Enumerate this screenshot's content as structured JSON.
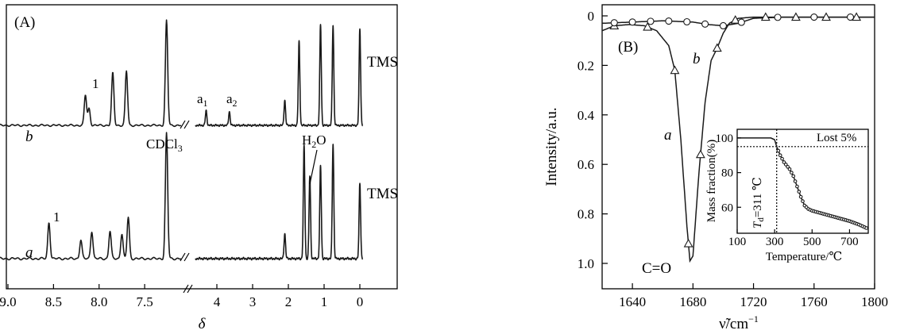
{
  "chart_data": [
    {
      "panel": "(A)",
      "type": "line",
      "xlabel": "δ",
      "x_ticks": [
        "9.0",
        "8.5",
        "8.0",
        "7.5",
        "4",
        "3",
        "2",
        "1",
        "0"
      ],
      "axis_break": "//",
      "series": [
        {
          "name": "b",
          "end_label": "TMS",
          "peaks": [
            {
              "delta": 8.15,
              "rel_height": 0.29,
              "label": "1"
            },
            {
              "delta": 8.11,
              "rel_height": 0.16
            },
            {
              "delta": 7.85,
              "rel_height": 0.5
            },
            {
              "delta": 7.7,
              "rel_height": 0.52
            },
            {
              "delta": 7.26,
              "rel_height": 1.0
            },
            {
              "delta": 4.3,
              "rel_height": 0.14,
              "label": "a1"
            },
            {
              "delta": 3.65,
              "rel_height": 0.13,
              "label": "a2"
            },
            {
              "delta": 2.1,
              "rel_height": 0.24
            },
            {
              "delta": 1.7,
              "rel_height": 0.8
            },
            {
              "delta": 1.1,
              "rel_height": 0.96
            },
            {
              "delta": 0.75,
              "rel_height": 0.96
            },
            {
              "delta": 0.0,
              "rel_height": 0.92
            }
          ]
        },
        {
          "name": "a",
          "end_label": "TMS",
          "peaks": [
            {
              "delta": 8.55,
              "rel_height": 0.29,
              "label": "1"
            },
            {
              "delta": 8.2,
              "rel_height": 0.15
            },
            {
              "delta": 8.08,
              "rel_height": 0.22
            },
            {
              "delta": 7.88,
              "rel_height": 0.22
            },
            {
              "delta": 7.75,
              "rel_height": 0.2
            },
            {
              "delta": 7.68,
              "rel_height": 0.33
            },
            {
              "delta": 7.26,
              "rel_height": 1.0,
              "label": "CDCl3"
            },
            {
              "delta": 2.1,
              "rel_height": 0.2
            },
            {
              "delta": 1.56,
              "rel_height": 0.9
            },
            {
              "delta": 1.4,
              "rel_height": 0.66,
              "label": "H2O"
            },
            {
              "delta": 1.1,
              "rel_height": 0.74
            },
            {
              "delta": 0.75,
              "rel_height": 0.92
            },
            {
              "delta": 0.0,
              "rel_height": 0.6
            }
          ]
        }
      ],
      "peak_labels": {
        "one": "1",
        "a1_main": "a",
        "a1_sub": "1",
        "a2_main": "a",
        "a2_sub": "2",
        "cdcl_main": "CDCl",
        "cdcl_sub": "3",
        "h2o_main": "H",
        "h2o_sub": "2",
        "h2o_end": "O",
        "tms": "TMS"
      }
    },
    {
      "panel": "(B)",
      "type": "line",
      "xlabel_main": "ν̃/cm",
      "xlabel_sup": "−1",
      "ylabel": "Intensity/a.u.",
      "xlim": [
        1620,
        1800
      ],
      "ylim": [
        0,
        1.0
      ],
      "y_inverted": true,
      "x_ticks": [
        1640,
        1680,
        1720,
        1760,
        1800
      ],
      "y_ticks": [
        "0",
        "0.2",
        "0.4",
        "0.6",
        "0.8",
        "1.0"
      ],
      "annotation": "C=O",
      "series": [
        {
          "name": "a",
          "marker": "triangle",
          "x": [
            1620,
            1628,
            1638,
            1648,
            1656,
            1664,
            1668,
            1672,
            1676,
            1678,
            1680,
            1684,
            1688,
            1692,
            1696,
            1700,
            1704,
            1710,
            1720,
            1740,
            1760,
            1780,
            1800
          ],
          "y": [
            0.06,
            0.04,
            0.035,
            0.04,
            0.06,
            0.12,
            0.22,
            0.5,
            0.85,
            0.99,
            0.97,
            0.63,
            0.35,
            0.18,
            0.13,
            0.07,
            0.03,
            0.01,
            0.005,
            0.005,
            0.005,
            0.005,
            0.005
          ],
          "marker_x": [
            1628,
            1650,
            1668,
            1677,
            1685,
            1696,
            1708,
            1728,
            1748,
            1768,
            1788
          ]
        },
        {
          "name": "b",
          "marker": "circle",
          "x": [
            1620,
            1640,
            1660,
            1680,
            1690,
            1700,
            1710,
            1720,
            1740,
            1760,
            1780,
            1800
          ],
          "y": [
            0.03,
            0.025,
            0.02,
            0.025,
            0.035,
            0.04,
            0.03,
            0.01,
            0.005,
            0.005,
            0.005,
            0.005
          ],
          "marker_x": [
            1628,
            1640,
            1652,
            1664,
            1676,
            1688,
            1700,
            1712,
            1736,
            1760,
            1784
          ]
        }
      ],
      "inset": {
        "type": "line",
        "xlabel": "Temperature/℃",
        "ylabel": "Mass fraction(%)",
        "xlim": [
          100,
          800
        ],
        "ylim": [
          45,
          105
        ],
        "x_ticks": [
          100,
          300,
          500,
          700
        ],
        "y_ticks": [
          60,
          80,
          100
        ],
        "threshold_y": 95,
        "vline_x": 311,
        "annotation_lost": "Lost 5%",
        "annotation_td_main": "T",
        "annotation_td_sub": "d",
        "annotation_td_val": "=311 ℃",
        "x": [
          100,
          200,
          280,
          300,
          311,
          330,
          350,
          380,
          400,
          420,
          440,
          460,
          480,
          500,
          550,
          600,
          650,
          700,
          750,
          800
        ],
        "y": [
          100,
          100,
          100,
          99,
          95,
          90,
          86,
          82,
          78,
          72,
          66,
          61,
          59,
          58,
          56.5,
          55,
          53.5,
          52,
          50,
          47.5
        ]
      }
    }
  ]
}
